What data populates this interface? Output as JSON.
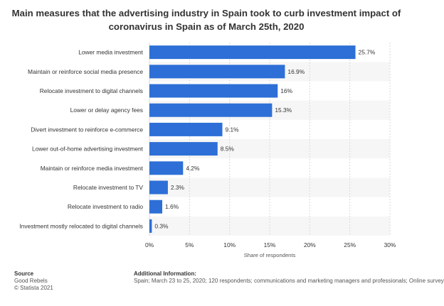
{
  "title": "Main measures that the advertising industry in Spain took to curb investment impact of coronavirus in Spain as of March 25th, 2020",
  "chart_data": {
    "type": "bar",
    "orientation": "horizontal",
    "categories": [
      "Lower media investment",
      "Maintain or reinforce social media presence",
      "Relocate investment to digital channels",
      "Lower or delay agency fees",
      "Divert investment to reinforce e-commerce",
      "Lower out-of-home advertising investment",
      "Maintain or reinforce media investment",
      "Relocate investment to TV",
      "Relocate investment to radio",
      "Investment mostly relocated to digital channels"
    ],
    "values": [
      25.7,
      16.9,
      16,
      15.3,
      9.1,
      8.5,
      4.2,
      2.3,
      1.6,
      0.3
    ],
    "value_labels": [
      "25.7%",
      "16.9%",
      "16%",
      "15.3%",
      "9.1%",
      "8.5%",
      "4.2%",
      "2.3%",
      "1.6%",
      "0.3%"
    ],
    "xlabel": "Share of respondents",
    "xlim": [
      0,
      30
    ],
    "xticks": [
      0,
      5,
      10,
      15,
      20,
      25,
      30
    ],
    "xtick_labels": [
      "0%",
      "5%",
      "10%",
      "15%",
      "20%",
      "25%",
      "30%"
    ],
    "grid": true,
    "bar_color": "#2d6fd6"
  },
  "footer": {
    "source_heading": "Source",
    "source_line1": "Good Rebels",
    "source_line2": "© Statista 2021",
    "info_heading": "Additional Information:",
    "info_text": "Spain; March 23 to 25, 2020; 120 respondents; communications and marketing managers and professionals; Online survey"
  }
}
